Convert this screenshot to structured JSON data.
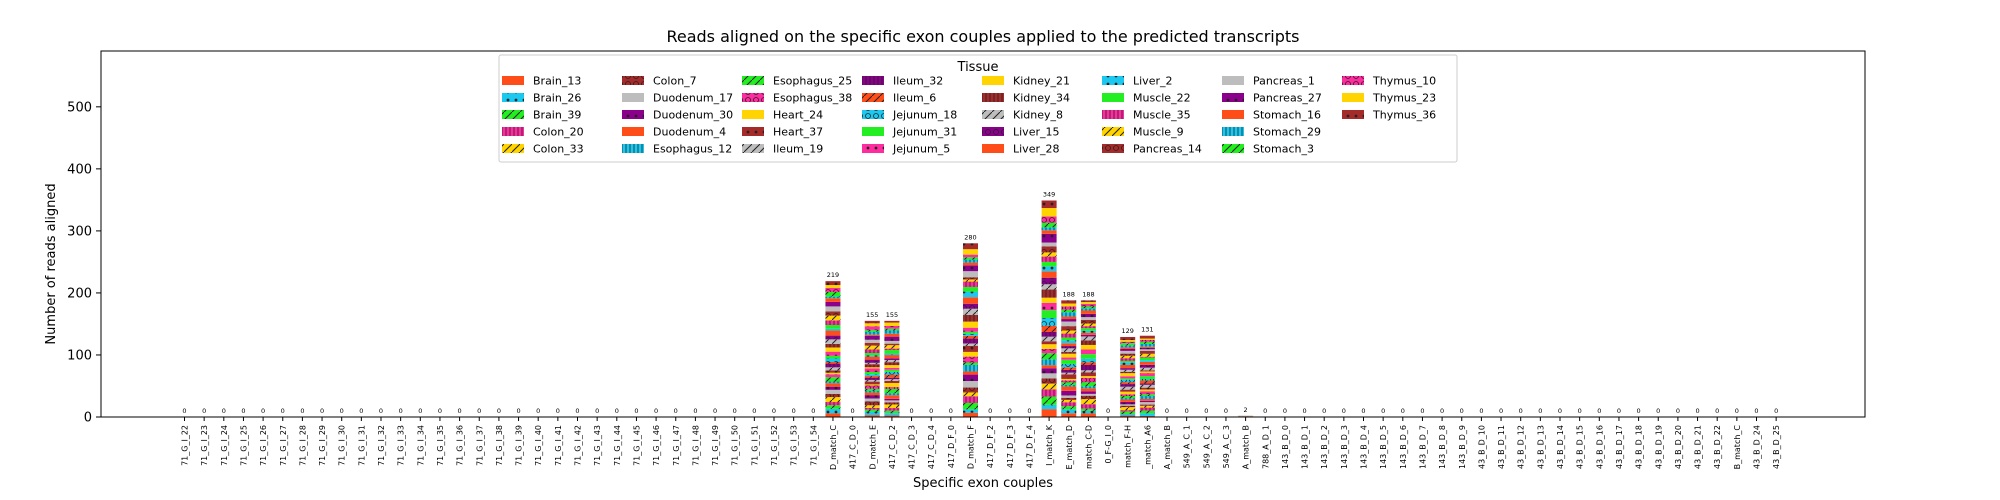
{
  "chart_data": {
    "type": "bar",
    "stacked": true,
    "title": "Reads aligned on the specific exon couples applied to the predicted transcripts",
    "xlabel": "Specific exon couples",
    "ylabel": "Number of reads aligned",
    "ylim": [
      0,
      590
    ],
    "yticks": [
      0,
      100,
      200,
      300,
      400,
      500
    ],
    "grid": false,
    "legend": {
      "title": "Tissue",
      "placement": "top-center",
      "columns": 8
    },
    "categories": [
      "71_G_I_22",
      "71_G_I_23",
      "71_G_I_24",
      "71_G_I_25",
      "71_G_I_26",
      "71_G_I_27",
      "71_G_I_28",
      "71_G_I_29",
      "71_G_I_30",
      "71_G_I_31",
      "71_G_I_32",
      "71_G_I_33",
      "71_G_I_34",
      "71_G_I_35",
      "71_G_I_36",
      "71_G_I_37",
      "71_G_I_38",
      "71_G_I_39",
      "71_G_I_40",
      "71_G_I_41",
      "71_G_I_42",
      "71_G_I_43",
      "71_G_I_44",
      "71_G_I_45",
      "71_G_I_46",
      "71_G_I_47",
      "71_G_I_48",
      "71_G_I_49",
      "71_G_I_50",
      "71_G_I_51",
      "71_G_I_52",
      "71_G_I_53",
      "71_G_I_54",
      "D_match_C",
      "417_C_D_0",
      "D_match_E",
      "417_C_D_2",
      "417_C_D_3",
      "417_C_D_4",
      "417_D_F_0",
      "D_match_F",
      "417_D_F_2",
      "417_D_F_3",
      "417_D_F_4",
      "I_match_K",
      "E_match_D",
      "match_C-D",
      "0_F-G_I_0",
      "match_F-H",
      "_match_A6",
      "A_match_B",
      "549_A_C_1",
      "549_A_C_2",
      "549_A_C_3",
      "A_match_B",
      "788_A_D_1",
      "143_B_D_0",
      "143_B_D_1",
      "143_B_D_2",
      "143_B_D_3",
      "143_B_D_4",
      "143_B_D_5",
      "143_B_D_6",
      "143_B_D_7",
      "143_B_D_8",
      "143_B_D_9",
      "43_B_D_10",
      "43_B_D_11",
      "43_B_D_12",
      "43_B_D_13",
      "43_B_D_14",
      "43_B_D_15",
      "43_B_D_16",
      "43_B_D_17",
      "43_B_D_18",
      "43_B_D_19",
      "43_B_D_20",
      "43_B_D_21",
      "43_B_D_22",
      "B_match_C",
      "43_B_D_24",
      "43_B_D_25"
    ],
    "totals": [
      0,
      0,
      0,
      0,
      0,
      0,
      0,
      0,
      0,
      0,
      0,
      0,
      0,
      0,
      0,
      0,
      0,
      0,
      0,
      0,
      0,
      0,
      0,
      0,
      0,
      0,
      0,
      0,
      0,
      0,
      0,
      0,
      0,
      219,
      0,
      155,
      155,
      0,
      0,
      0,
      280,
      0,
      0,
      0,
      349,
      188,
      188,
      0,
      129,
      131,
      0,
      0,
      0,
      0,
      2,
      0,
      0,
      0,
      0,
      0,
      0,
      0,
      0,
      0,
      0,
      0,
      0,
      0,
      0,
      0,
      0,
      0,
      0,
      0,
      0,
      0,
      0,
      0,
      0,
      0,
      0,
      0
    ],
    "series": [
      {
        "name": "Brain_13",
        "color": "#ff4d1a",
        "hatch": "none"
      },
      {
        "name": "Brain_26",
        "color": "#1ac8f0",
        "hatch": "dot"
      },
      {
        "name": "Brain_39",
        "color": "#22ee22",
        "hatch": "slash"
      },
      {
        "name": "Colon_20",
        "color": "#ff2ca0",
        "hatch": "bars"
      },
      {
        "name": "Colon_33",
        "color": "#ffd400",
        "hatch": "slash"
      },
      {
        "name": "Colon_7",
        "color": "#a52a2a",
        "hatch": "circle"
      },
      {
        "name": "Duodenum_17",
        "color": "#bdbdbd",
        "hatch": "none"
      },
      {
        "name": "Duodenum_30",
        "color": "#8b008b",
        "hatch": "dot"
      },
      {
        "name": "Duodenum_4",
        "color": "#ff4d1a",
        "hatch": "none"
      },
      {
        "name": "Esophagus_12",
        "color": "#1ac8f0",
        "hatch": "bars"
      },
      {
        "name": "Esophagus_25",
        "color": "#22ee22",
        "hatch": "slash"
      },
      {
        "name": "Esophagus_38",
        "color": "#ff2ca0",
        "hatch": "circle"
      },
      {
        "name": "Heart_24",
        "color": "#ffd400",
        "hatch": "none"
      },
      {
        "name": "Heart_37",
        "color": "#a52a2a",
        "hatch": "dot"
      },
      {
        "name": "Ileum_19",
        "color": "#bdbdbd",
        "hatch": "slash"
      },
      {
        "name": "Ileum_32",
        "color": "#8b008b",
        "hatch": "bars"
      },
      {
        "name": "Ileum_6",
        "color": "#ff4d1a",
        "hatch": "slash"
      },
      {
        "name": "Jejunum_18",
        "color": "#1ac8f0",
        "hatch": "circle"
      },
      {
        "name": "Jejunum_31",
        "color": "#22ee22",
        "hatch": "none"
      },
      {
        "name": "Jejunum_5",
        "color": "#ff2ca0",
        "hatch": "dot"
      },
      {
        "name": "Kidney_21",
        "color": "#ffd400",
        "hatch": "none"
      },
      {
        "name": "Kidney_34",
        "color": "#a52a2a",
        "hatch": "bars"
      },
      {
        "name": "Kidney_8",
        "color": "#bdbdbd",
        "hatch": "slash"
      },
      {
        "name": "Liver_15",
        "color": "#8b008b",
        "hatch": "circle"
      },
      {
        "name": "Liver_28",
        "color": "#ff4d1a",
        "hatch": "none"
      },
      {
        "name": "Liver_2",
        "color": "#1ac8f0",
        "hatch": "dot"
      },
      {
        "name": "Muscle_22",
        "color": "#22ee22",
        "hatch": "none"
      },
      {
        "name": "Muscle_35",
        "color": "#ff2ca0",
        "hatch": "bars"
      },
      {
        "name": "Muscle_9",
        "color": "#ffd400",
        "hatch": "slash"
      },
      {
        "name": "Pancreas_14",
        "color": "#a52a2a",
        "hatch": "circle"
      },
      {
        "name": "Pancreas_1",
        "color": "#bdbdbd",
        "hatch": "none"
      },
      {
        "name": "Pancreas_27",
        "color": "#8b008b",
        "hatch": "dot"
      },
      {
        "name": "Stomach_16",
        "color": "#ff4d1a",
        "hatch": "none"
      },
      {
        "name": "Stomach_29",
        "color": "#1ac8f0",
        "hatch": "bars"
      },
      {
        "name": "Stomach_3",
        "color": "#22ee22",
        "hatch": "slash"
      },
      {
        "name": "Thymus_10",
        "color": "#ff2ca0",
        "hatch": "circle"
      },
      {
        "name": "Thymus_23",
        "color": "#ffd400",
        "hatch": "none"
      },
      {
        "name": "Thymus_36",
        "color": "#a52a2a",
        "hatch": "dot"
      }
    ]
  }
}
